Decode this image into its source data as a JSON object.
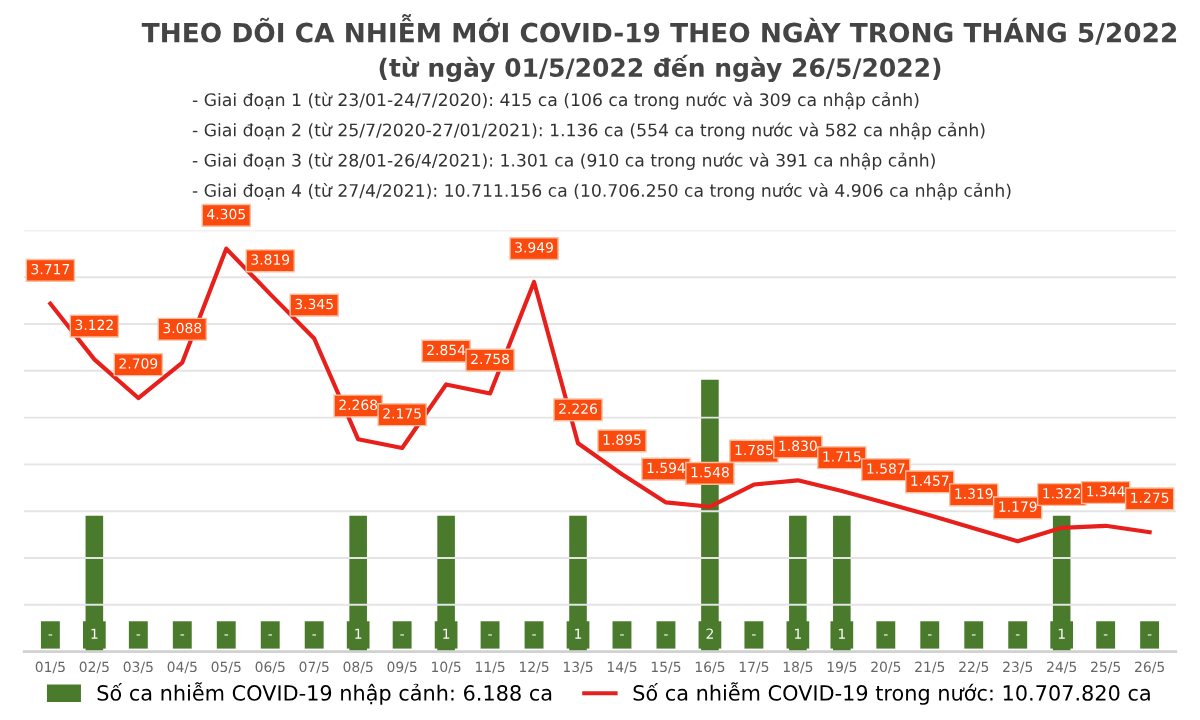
{
  "chart_data": {
    "type": "bar",
    "title": "THEO DÕI CA NHIỄM MỚI COVID-19 THEO NGÀY TRONG THÁNG 5/2022",
    "subtitle": "(từ ngày 01/5/2022 đến ngày 26/5/2022)",
    "annotations": [
      "- Giai đoạn 1 (từ 23/01-24/7/2020): 415 ca (106 ca trong nước và 309 ca nhập cảnh)",
      "- Giai đoạn 2 (từ 25/7/2020-27/01/2021): 1.136 ca (554 ca trong nước và 582 ca nhập cảnh)",
      "- Giai đoạn 3 (từ 28/01-26/4/2021): 1.301 ca (910 ca trong nước và 391 ca nhập cảnh)",
      "- Giai đoạn 4 (từ 27/4/2021): 10.711.156 ca (10.706.250 ca trong nước và 4.906 ca nhập cảnh)"
    ],
    "categories": [
      "01/5",
      "02/5",
      "03/5",
      "04/5",
      "05/5",
      "06/5",
      "07/5",
      "08/5",
      "09/5",
      "10/5",
      "11/5",
      "12/5",
      "13/5",
      "14/5",
      "15/5",
      "16/5",
      "17/5",
      "18/5",
      "19/5",
      "20/5",
      "21/5",
      "22/5",
      "23/5",
      "24/5",
      "25/5",
      "26/5"
    ],
    "series": [
      {
        "name": "Số ca nhiễm COVID-19 nhập cảnh: 6.188 ca",
        "color": "#4a7a2c",
        "values": [
          0,
          1,
          0,
          0,
          0,
          0,
          0,
          1,
          0,
          1,
          0,
          0,
          1,
          0,
          0,
          2,
          0,
          1,
          1,
          0,
          0,
          0,
          0,
          1,
          0,
          0
        ],
        "value_labels": [
          "-",
          "1",
          "-",
          "-",
          "-",
          "-",
          "-",
          "1",
          "-",
          "1",
          "-",
          "-",
          "1",
          "-",
          "-",
          "2",
          "-",
          "1",
          "1",
          "-",
          "-",
          "-",
          "-",
          "1",
          "-",
          "-"
        ]
      },
      {
        "name": "Số ca nhiễm COVID-19 trong nước: 10.707.820 ca",
        "type": "line",
        "axis": "y2",
        "color": "#e8201c",
        "values": [
          3717,
          3122,
          2709,
          3088,
          4305,
          3819,
          3345,
          2268,
          2175,
          2854,
          2758,
          3949,
          2226,
          1895,
          1594,
          1548,
          1785,
          1830,
          1715,
          1587,
          1457,
          1319,
          1179,
          1322,
          1344,
          1275
        ],
        "value_labels": [
          "3.717",
          "3.122",
          "2.709",
          "3.088",
          "4.305",
          "3.819",
          "3.345",
          "2.268",
          "2.175",
          "2.854",
          "2.758",
          "3.949",
          "2.226",
          "1.895",
          "1.594",
          "1.548",
          "1.785",
          "1.830",
          "1.715",
          "1.587",
          "1.457",
          "1.319",
          "1.179",
          "1.322",
          "1.344",
          "1.275"
        ]
      }
    ],
    "ylim": [
      0,
      3.1
    ],
    "y2lim": [
      0,
      4500
    ],
    "y2ticks": [
      {
        "value": 0,
        "label": null
      },
      {
        "value": 500,
        "label": null
      },
      {
        "value": 1000,
        "label": null
      },
      {
        "value": 1500,
        "label": null
      },
      {
        "value": 2000,
        "label": null
      },
      {
        "value": 2500,
        "label": null
      },
      {
        "value": 3000,
        "label": null
      },
      {
        "value": 3500,
        "label": null
      },
      {
        "value": 4000,
        "label": null
      },
      {
        "value": 4500,
        "label": null
      }
    ],
    "tick_labels": "x",
    "grid": "y",
    "legend": "bottom"
  }
}
